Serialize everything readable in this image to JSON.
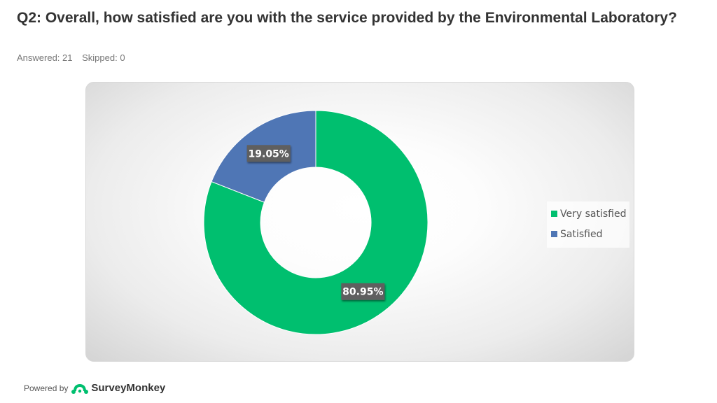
{
  "question": {
    "title": "Q2: Overall, how satisfied are you with the service provided by the Environmental Laboratory?",
    "answered": "Answered: 21",
    "skipped": "Skipped: 0"
  },
  "chart_data": {
    "type": "pie",
    "donut": true,
    "categories": [
      "Very satisfied",
      "Satisfied"
    ],
    "values": [
      80.95,
      19.05
    ],
    "data_labels": [
      "80.95%",
      "19.05%"
    ],
    "colors": [
      "#00bf6f",
      "#4f76b5"
    ],
    "legend_position": "right"
  },
  "footer": {
    "powered_by": "Powered by",
    "brand": "SurveyMonkey",
    "brand_icon": "surveymonkey-logo-icon"
  }
}
